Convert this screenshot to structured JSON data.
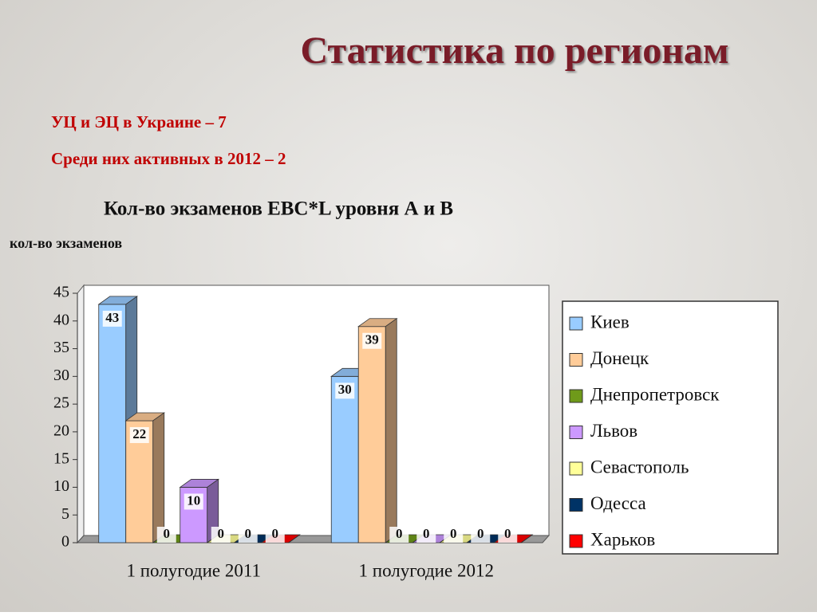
{
  "slide": {
    "title": "Статистика по регионам",
    "lines": [
      "УЦ и ЭЦ в Украине – 7",
      "Среди них активных в 2012 – 2"
    ]
  },
  "chart_data": {
    "type": "bar3d",
    "title": "Кол-во экзаменов EBC*L уровня А и В",
    "y_label": "кол-во экзаменов",
    "categories": [
      "1 полугодие 2011",
      "1 полугодие 2012"
    ],
    "series": [
      {
        "name": "Киев",
        "color": "#99ccff",
        "values": [
          43,
          30
        ]
      },
      {
        "name": "Донецк",
        "color": "#ffcc99",
        "values": [
          22,
          39
        ]
      },
      {
        "name": "Днепропетровск",
        "color": "#6f9a1a",
        "values": [
          0,
          0
        ]
      },
      {
        "name": "Львов",
        "color": "#cc99ff",
        "values": [
          10,
          0
        ]
      },
      {
        "name": "Севастополь",
        "color": "#ffff99",
        "values": [
          0,
          0
        ]
      },
      {
        "name": "Одесса",
        "color": "#003366",
        "values": [
          0,
          0
        ]
      },
      {
        "name": "Харьков",
        "color": "#ff0000",
        "values": [
          0,
          0
        ]
      }
    ],
    "ylim": [
      0,
      45
    ],
    "yticks": [
      0,
      5,
      10,
      15,
      20,
      25,
      30,
      35,
      40,
      45
    ],
    "legend": "right"
  }
}
